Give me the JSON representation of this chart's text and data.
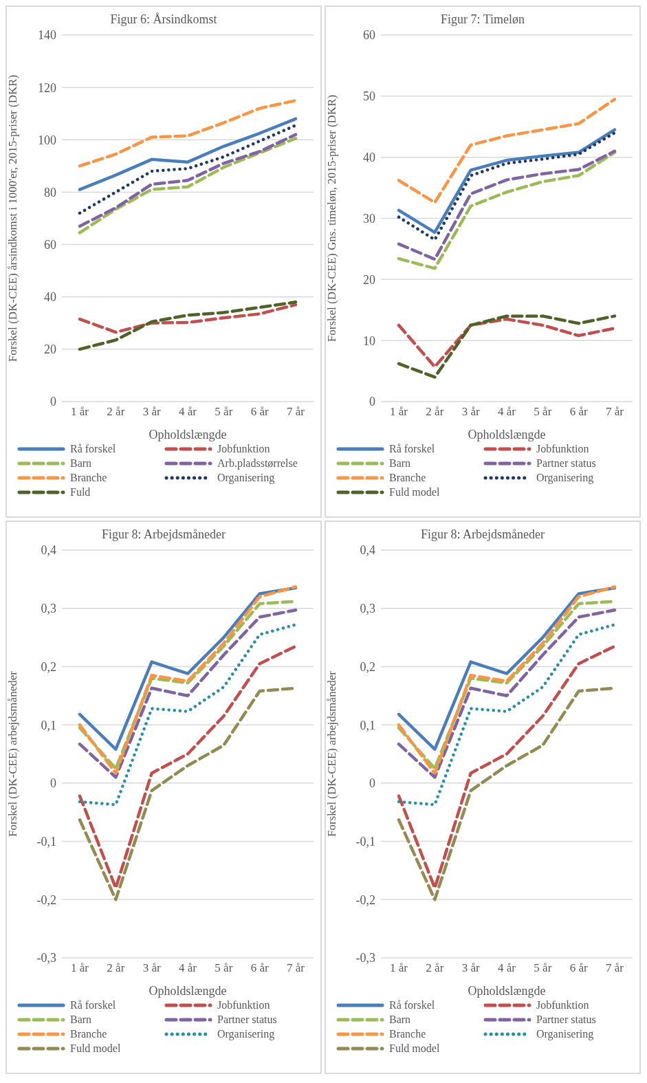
{
  "chart_data": [
    {
      "type": "line",
      "title": "Figur 6: Årsindkomst",
      "xlabel": "Opholdslængde",
      "ylabel": "Forskel (DK-CEE) årsindkomst i 1000'er, 2015-priser (DKR)",
      "categories": [
        "1 år",
        "2 år",
        "3 år",
        "4 år",
        "5 år",
        "6 år",
        "7 år"
      ],
      "ylim": [
        0,
        140
      ],
      "yticks": [
        0,
        20,
        40,
        60,
        80,
        100,
        120,
        140
      ],
      "grid": "y",
      "legend": "bottom",
      "marker": "none",
      "series": [
        {
          "name": "Rå forskel",
          "color": "#4a7ebb",
          "line_style": "solid",
          "values": [
            81,
            86.5,
            92.5,
            91.5,
            97.5,
            102.5,
            108
          ]
        },
        {
          "name": "Jobfunktion",
          "color": "#c0504d",
          "line_style": "dashed",
          "values": [
            31.5,
            26.5,
            30,
            30.2,
            32,
            33.5,
            37
          ]
        },
        {
          "name": "Barn",
          "color": "#9bbb59",
          "line_style": "dashed",
          "values": [
            64.5,
            73.5,
            81,
            82,
            89.5,
            95,
            100.5
          ]
        },
        {
          "name": "Arb.pladsstørrelse",
          "color": "#8064a2",
          "line_style": "dashed",
          "values": [
            67,
            74,
            83,
            84.5,
            91,
            95.5,
            102
          ]
        },
        {
          "name": "Branche",
          "color": "#f79646",
          "line_style": "dashed",
          "values": [
            90,
            94.5,
            101,
            101.5,
            106.5,
            112,
            115
          ]
        },
        {
          "name": "Organisering",
          "color": "#1f3864",
          "line_style": "dotted",
          "values": [
            72,
            80,
            88,
            89,
            93.5,
            99.5,
            105.5
          ]
        },
        {
          "name": "Fuld",
          "color": "#4f6228",
          "line_style": "dashed",
          "values": [
            20,
            23.5,
            30.5,
            33,
            34,
            36,
            38
          ]
        }
      ]
    },
    {
      "type": "line",
      "title": "Figur 7: Timeløn",
      "xlabel": "Opholdslængde",
      "ylabel": "Forskel (DK-CEE) Gns. timeløn, 2015-priser (DKR)",
      "categories": [
        "1 år",
        "2 år",
        "3 år",
        "4 år",
        "5 år",
        "6 år",
        "7 år"
      ],
      "ylim": [
        0,
        60
      ],
      "yticks": [
        0,
        10,
        20,
        30,
        40,
        50,
        60
      ],
      "grid": "y",
      "legend": "bottom",
      "marker": "none",
      "series": [
        {
          "name": "Rå forskel",
          "color": "#4a7ebb",
          "line_style": "solid",
          "values": [
            31.3,
            27.7,
            37.9,
            39.5,
            40.2,
            40.8,
            44.5
          ]
        },
        {
          "name": "Jobfunktion",
          "color": "#c0504d",
          "line_style": "dashed",
          "values": [
            12.5,
            5.7,
            12.5,
            13.5,
            12.5,
            10.8,
            12
          ]
        },
        {
          "name": "Barn",
          "color": "#9bbb59",
          "line_style": "dashed",
          "values": [
            23.4,
            21.8,
            32,
            34.3,
            36,
            37,
            40.8
          ]
        },
        {
          "name": "Partner status",
          "color": "#8064a2",
          "line_style": "dashed",
          "values": [
            25.8,
            23.3,
            34,
            36.3,
            37.3,
            38,
            41
          ]
        },
        {
          "name": "Branche",
          "color": "#f79646",
          "line_style": "dashed",
          "values": [
            36.2,
            32.6,
            42,
            43.5,
            44.5,
            45.5,
            49.5
          ]
        },
        {
          "name": "Organisering",
          "color": "#1f3864",
          "line_style": "dotted",
          "values": [
            30.2,
            26.5,
            37,
            39,
            39.7,
            40.5,
            44
          ]
        },
        {
          "name": "Fuld model",
          "color": "#4f6228",
          "line_style": "dashed",
          "values": [
            6.2,
            4,
            12.5,
            14,
            14,
            12.8,
            14
          ]
        }
      ]
    },
    {
      "type": "line",
      "title": "Figur 8: Arbejdsmåneder",
      "xlabel": "Opholdslængde",
      "ylabel": "Forskel (DK-CEE) arbejdsmåneder",
      "categories": [
        "1 år",
        "2 år",
        "3 år",
        "4 år",
        "5 år",
        "6 år",
        "7 år"
      ],
      "ylim": [
        -0.3,
        0.4
      ],
      "yticks": [
        {
          "value": -0.3,
          "label": "-0,3"
        },
        {
          "value": -0.2,
          "label": "-0,2"
        },
        {
          "value": -0.1,
          "label": "-0,1"
        },
        0,
        {
          "value": 0.1,
          "label": "0,1"
        },
        {
          "value": 0.2,
          "label": "0,2"
        },
        {
          "value": 0.3,
          "label": "0,3"
        },
        {
          "value": 0.4,
          "label": "0,4"
        }
      ],
      "grid": "y",
      "legend": "bottom",
      "marker": "none",
      "series": [
        {
          "name": "Rå forskel",
          "color": "#4a7ebb",
          "line_style": "solid",
          "values": [
            0.118,
            0.058,
            0.208,
            0.188,
            0.25,
            0.325,
            0.335
          ]
        },
        {
          "name": "Jobfunktion",
          "color": "#c0504d",
          "line_style": "dashed",
          "values": [
            -0.022,
            -0.18,
            0.017,
            0.05,
            0.115,
            0.205,
            0.235
          ]
        },
        {
          "name": "Barn",
          "color": "#9bbb59",
          "line_style": "dashed",
          "values": [
            0.095,
            0.025,
            0.18,
            0.172,
            0.235,
            0.308,
            0.312
          ]
        },
        {
          "name": "Partner status",
          "color": "#8064a2",
          "line_style": "dashed",
          "values": [
            0.067,
            0.01,
            0.163,
            0.15,
            0.22,
            0.285,
            0.297
          ]
        },
        {
          "name": "Branche",
          "color": "#f79646",
          "line_style": "dashed",
          "values": [
            0.1,
            0.017,
            0.185,
            0.175,
            0.24,
            0.32,
            0.337
          ]
        },
        {
          "name": "Organisering",
          "color": "#2a8ca8",
          "line_style": "dotted",
          "values": [
            -0.032,
            -0.037,
            0.128,
            0.123,
            0.165,
            0.255,
            0.272
          ]
        },
        {
          "name": "Fuld model",
          "color": "#948a54",
          "line_style": "dashed",
          "values": [
            -0.063,
            -0.2,
            -0.013,
            0.03,
            0.065,
            0.158,
            0.163
          ]
        }
      ]
    },
    {
      "type": "line",
      "title": "Figur 8: Arbejdsmåneder",
      "xlabel": "Opholdslængde",
      "ylabel": "Forskel (DK-CEE) arbejdsmåneder",
      "categories": [
        "1 år",
        "2 år",
        "3 år",
        "4 år",
        "5 år",
        "6 år",
        "7 år"
      ],
      "ylim": [
        -0.3,
        0.4
      ],
      "yticks": [
        {
          "value": -0.3,
          "label": "-0,3"
        },
        {
          "value": -0.2,
          "label": "-0,2"
        },
        {
          "value": -0.1,
          "label": "-0,1"
        },
        0,
        {
          "value": 0.1,
          "label": "0,1"
        },
        {
          "value": 0.2,
          "label": "0,2"
        },
        {
          "value": 0.3,
          "label": "0,3"
        },
        {
          "value": 0.4,
          "label": "0,4"
        }
      ],
      "grid": "y",
      "legend": "bottom",
      "marker": "none",
      "series": [
        {
          "name": "Rå forskel",
          "color": "#4a7ebb",
          "line_style": "solid",
          "values": [
            0.118,
            0.058,
            0.208,
            0.188,
            0.25,
            0.325,
            0.335
          ]
        },
        {
          "name": "Jobfunktion",
          "color": "#c0504d",
          "line_style": "dashed",
          "values": [
            -0.022,
            -0.18,
            0.017,
            0.05,
            0.115,
            0.205,
            0.235
          ]
        },
        {
          "name": "Barn",
          "color": "#9bbb59",
          "line_style": "dashed",
          "values": [
            0.095,
            0.025,
            0.18,
            0.172,
            0.235,
            0.308,
            0.312
          ]
        },
        {
          "name": "Partner status",
          "color": "#8064a2",
          "line_style": "dashed",
          "values": [
            0.067,
            0.01,
            0.163,
            0.15,
            0.22,
            0.285,
            0.297
          ]
        },
        {
          "name": "Branche",
          "color": "#f79646",
          "line_style": "dashed",
          "values": [
            0.1,
            0.017,
            0.185,
            0.175,
            0.24,
            0.32,
            0.337
          ]
        },
        {
          "name": "Organisering",
          "color": "#2a8ca8",
          "line_style": "dotted",
          "values": [
            -0.032,
            -0.037,
            0.128,
            0.123,
            0.165,
            0.255,
            0.272
          ]
        },
        {
          "name": "Fuld model",
          "color": "#948a54",
          "line_style": "dashed",
          "values": [
            -0.063,
            -0.2,
            -0.013,
            0.03,
            0.065,
            0.158,
            0.163
          ]
        }
      ]
    }
  ]
}
